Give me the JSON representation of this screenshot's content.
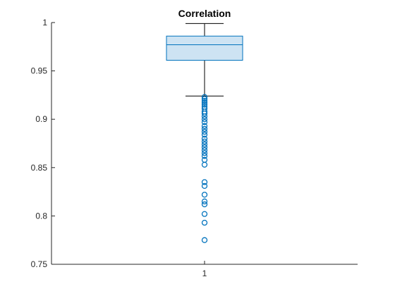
{
  "chart_data": {
    "type": "box",
    "title": "Correlation",
    "xlabel": "",
    "ylabel": "",
    "categories": [
      "1"
    ],
    "ylim": [
      0.75,
      1
    ],
    "yticks": [
      0.75,
      0.8,
      0.85,
      0.9,
      0.95,
      1
    ],
    "ytick_labels": [
      "0.75",
      "0.8",
      "0.85",
      "0.9",
      "0.95",
      "1"
    ],
    "grid": false,
    "box": {
      "whisker_low": 0.924,
      "q1": 0.961,
      "median": 0.977,
      "q3": 0.986,
      "whisker_high": 0.999
    },
    "outliers": [
      0.923,
      0.921,
      0.919,
      0.917,
      0.915,
      0.913,
      0.911,
      0.908,
      0.906,
      0.903,
      0.9,
      0.897,
      0.893,
      0.89,
      0.887,
      0.884,
      0.88,
      0.877,
      0.874,
      0.871,
      0.868,
      0.865,
      0.862,
      0.858,
      0.853,
      0.835,
      0.831,
      0.822,
      0.815,
      0.812,
      0.802,
      0.793,
      0.775
    ],
    "colors": {
      "box_fill": "#cde3f3",
      "box_edge": "#0072bd",
      "median": "#0072bd",
      "whisker": "#000000",
      "outlier": "#0072bd",
      "axis": "#262626"
    }
  }
}
